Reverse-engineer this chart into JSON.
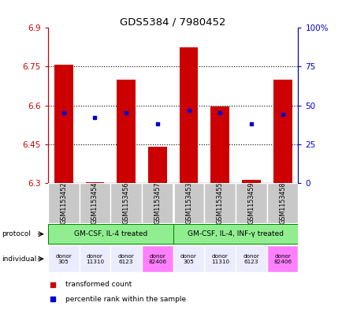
{
  "title": "GDS5384 / 7980452",
  "samples": [
    "GSM1153452",
    "GSM1153454",
    "GSM1153456",
    "GSM1153457",
    "GSM1153453",
    "GSM1153455",
    "GSM1153459",
    "GSM1153458"
  ],
  "red_values": [
    6.757,
    6.302,
    6.7,
    6.44,
    6.825,
    6.595,
    6.312,
    6.7
  ],
  "blue_values": [
    6.57,
    6.553,
    6.57,
    6.53,
    6.58,
    6.57,
    6.53,
    6.565
  ],
  "ymin": 6.3,
  "ymax": 6.9,
  "yticks": [
    6.3,
    6.45,
    6.6,
    6.75,
    6.9
  ],
  "ytick_labels": [
    "6.3",
    "6.45",
    "6.6",
    "6.75",
    "6.9"
  ],
  "right_yticks": [
    0,
    25,
    50,
    75,
    100
  ],
  "right_ytick_labels": [
    "0",
    "25",
    "50",
    "75",
    "100%"
  ],
  "protocol_labels": [
    "GM-CSF, IL-4 treated",
    "GM-CSF, IL-4, INF-γ treated"
  ],
  "individual_labels": [
    "donor\n305",
    "donor\n11310",
    "donor\n6123",
    "donor\n82406",
    "donor\n305",
    "donor\n11310",
    "donor\n6123",
    "donor\n82406"
  ],
  "individual_colors": [
    "#ececff",
    "#ececff",
    "#ececff",
    "#ff80ff",
    "#ececff",
    "#ececff",
    "#ececff",
    "#ff80ff"
  ],
  "bar_color": "#cc0000",
  "blue_color": "#0000cc",
  "left_axis_color": "#cc0000",
  "right_axis_color": "#0000cc",
  "protocol_bg": "#90ee90",
  "sample_bg": "#c8c8c8",
  "legend_red": "transformed count",
  "legend_blue": "percentile rank within the sample"
}
